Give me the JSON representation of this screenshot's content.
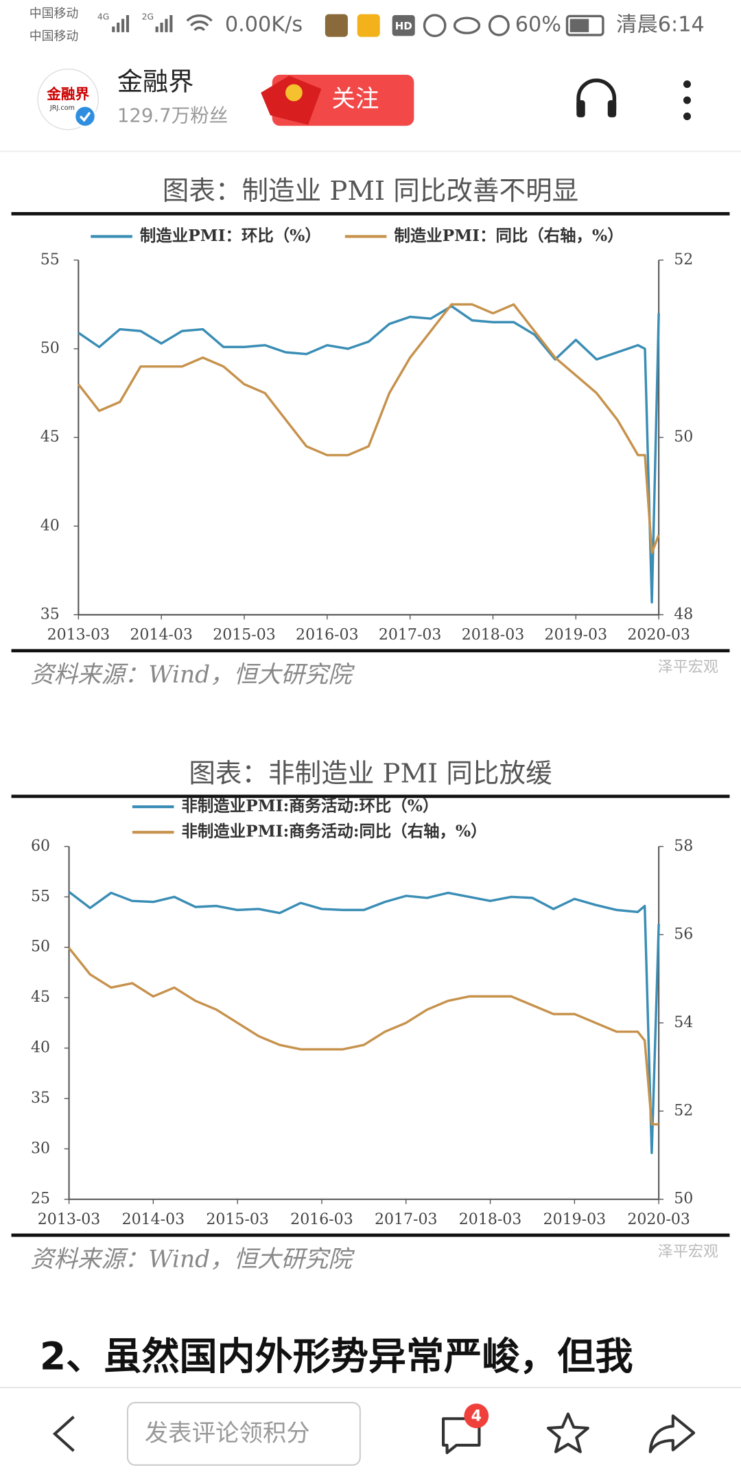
{
  "status_bar": {
    "carrier_1": "中国移动",
    "carrier_2": "中国移动",
    "network_1": "4G",
    "network_2": "2G",
    "speed": "0.00K/s",
    "hd": "HD",
    "battery": "60%",
    "time": "清晨6:14"
  },
  "header": {
    "logo": "金融界",
    "logo_sub": "JRJ.com",
    "account": "金融界",
    "followers": "129.7万粉丝",
    "follow_button": "关注"
  },
  "chart_data": [
    {
      "type": "line",
      "title": "图表：制造业 PMI 同比改善不明显",
      "source": "资料来源：Wind，恒大研究院",
      "watermark": "泽平宏观",
      "x": [
        "2013-03",
        "2013-06",
        "2013-09",
        "2013-12",
        "2014-03",
        "2014-06",
        "2014-09",
        "2014-12",
        "2015-03",
        "2015-06",
        "2015-09",
        "2015-12",
        "2016-03",
        "2016-06",
        "2016-09",
        "2016-12",
        "2017-03",
        "2017-06",
        "2017-09",
        "2017-12",
        "2018-03",
        "2018-06",
        "2018-09",
        "2018-12",
        "2019-03",
        "2019-06",
        "2019-09",
        "2019-12",
        "2020-01",
        "2020-02",
        "2020-03"
      ],
      "xlim": [
        "2013-03",
        "2020-03"
      ],
      "xticks": [
        "2013-03",
        "2014-03",
        "2015-03",
        "2016-03",
        "2017-03",
        "2018-03",
        "2019-03",
        "2020-03"
      ],
      "ylim": [
        35,
        55
      ],
      "yticks": [
        35,
        40,
        45,
        50,
        55
      ],
      "y2lim": [
        48,
        52
      ],
      "y2ticks": [
        48,
        50,
        52
      ],
      "grid": false,
      "series": [
        {
          "name": "制造业PMI：环比（%）",
          "color": "#3a8db5",
          "values": [
            50.9,
            50.1,
            51.1,
            51.0,
            50.3,
            51.0,
            51.1,
            50.1,
            50.1,
            50.2,
            49.8,
            49.7,
            50.2,
            50.0,
            50.4,
            51.4,
            51.8,
            51.7,
            52.4,
            51.6,
            51.5,
            51.5,
            50.8,
            49.4,
            50.5,
            49.4,
            49.8,
            50.2,
            50.0,
            35.7,
            52.0
          ]
        },
        {
          "name": "制造业PMI：同比（右轴，%）",
          "color": "#c6924c",
          "axis": "y2",
          "values": [
            50.6,
            50.3,
            50.4,
            50.8,
            50.8,
            50.8,
            50.9,
            50.8,
            50.6,
            50.5,
            50.2,
            49.9,
            49.8,
            49.8,
            49.9,
            50.5,
            50.9,
            51.2,
            51.5,
            51.5,
            51.4,
            51.5,
            51.2,
            50.9,
            50.7,
            50.5,
            50.2,
            49.8,
            49.8,
            48.7,
            48.9
          ]
        }
      ]
    },
    {
      "type": "line",
      "title": "图表：非制造业 PMI 同比放缓",
      "source": "资料来源：Wind，恒大研究院",
      "watermark": "泽平宏观",
      "x": [
        "2013-03",
        "2013-06",
        "2013-09",
        "2013-12",
        "2014-03",
        "2014-06",
        "2014-09",
        "2014-12",
        "2015-03",
        "2015-06",
        "2015-09",
        "2015-12",
        "2016-03",
        "2016-06",
        "2016-09",
        "2016-12",
        "2017-03",
        "2017-06",
        "2017-09",
        "2017-12",
        "2018-03",
        "2018-06",
        "2018-09",
        "2018-12",
        "2019-03",
        "2019-06",
        "2019-09",
        "2019-12",
        "2020-01",
        "2020-02",
        "2020-03"
      ],
      "xlim": [
        "2013-03",
        "2020-03"
      ],
      "xticks": [
        "2013-03",
        "2014-03",
        "2015-03",
        "2016-03",
        "2017-03",
        "2018-03",
        "2019-03",
        "2020-03"
      ],
      "ylim": [
        25,
        60
      ],
      "yticks": [
        25,
        30,
        35,
        40,
        45,
        50,
        55,
        60
      ],
      "y2lim": [
        50,
        58
      ],
      "y2ticks": [
        50,
        52,
        54,
        56,
        58
      ],
      "grid": false,
      "series": [
        {
          "name": "非制造业PMI:商务活动:环比（%）",
          "color": "#3a8db5",
          "values": [
            55.5,
            53.9,
            55.4,
            54.6,
            54.5,
            55.0,
            54.0,
            54.1,
            53.7,
            53.8,
            53.4,
            54.4,
            53.8,
            53.7,
            53.7,
            54.5,
            55.1,
            54.9,
            55.4,
            55.0,
            54.6,
            55.0,
            54.9,
            53.8,
            54.8,
            54.2,
            53.7,
            53.5,
            54.1,
            29.6,
            52.3
          ]
        },
        {
          "name": "非制造业PMI:商务活动:同比（右轴，%）",
          "color": "#c6924c",
          "axis": "y2",
          "values": [
            55.7,
            55.1,
            54.8,
            54.9,
            54.6,
            54.8,
            54.5,
            54.3,
            54.0,
            53.7,
            53.5,
            53.4,
            53.4,
            53.4,
            53.5,
            53.8,
            54.0,
            54.3,
            54.5,
            54.6,
            54.6,
            54.6,
            54.4,
            54.2,
            54.2,
            54.0,
            53.8,
            53.8,
            53.6,
            51.7,
            51.7
          ]
        }
      ]
    }
  ],
  "article": {
    "heading": "2、虽然国内外形势异常严峻，但我"
  },
  "bottom_bar": {
    "comment_placeholder": "发表评论领积分",
    "comment_count": 4
  }
}
